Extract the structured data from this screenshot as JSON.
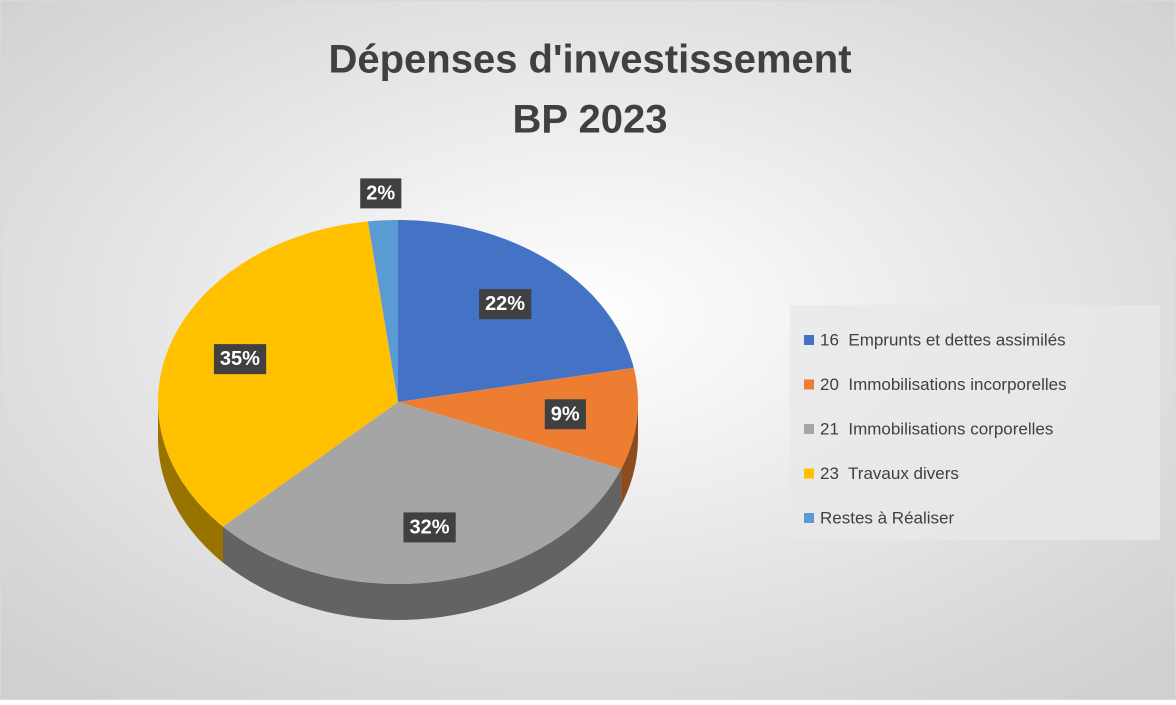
{
  "chart_data": {
    "type": "pie3d",
    "title": [
      "Dépenses d'investissement",
      "BP 2023"
    ],
    "categories": [
      "16  Emprunts et dettes assimilés",
      "20  Immobilisations incorporelles",
      "21  Immobilisations corporelles",
      "23  Travaux divers",
      "Restes à Réaliser"
    ],
    "values": [
      22,
      9,
      32,
      35,
      2
    ],
    "value_labels": [
      "22%",
      "9%",
      "32%",
      "35%",
      "2%"
    ],
    "colors": [
      "#4472c4",
      "#ed7d31",
      "#a5a5a5",
      "#ffc000",
      "#5b9bd5"
    ],
    "legend": "right"
  }
}
